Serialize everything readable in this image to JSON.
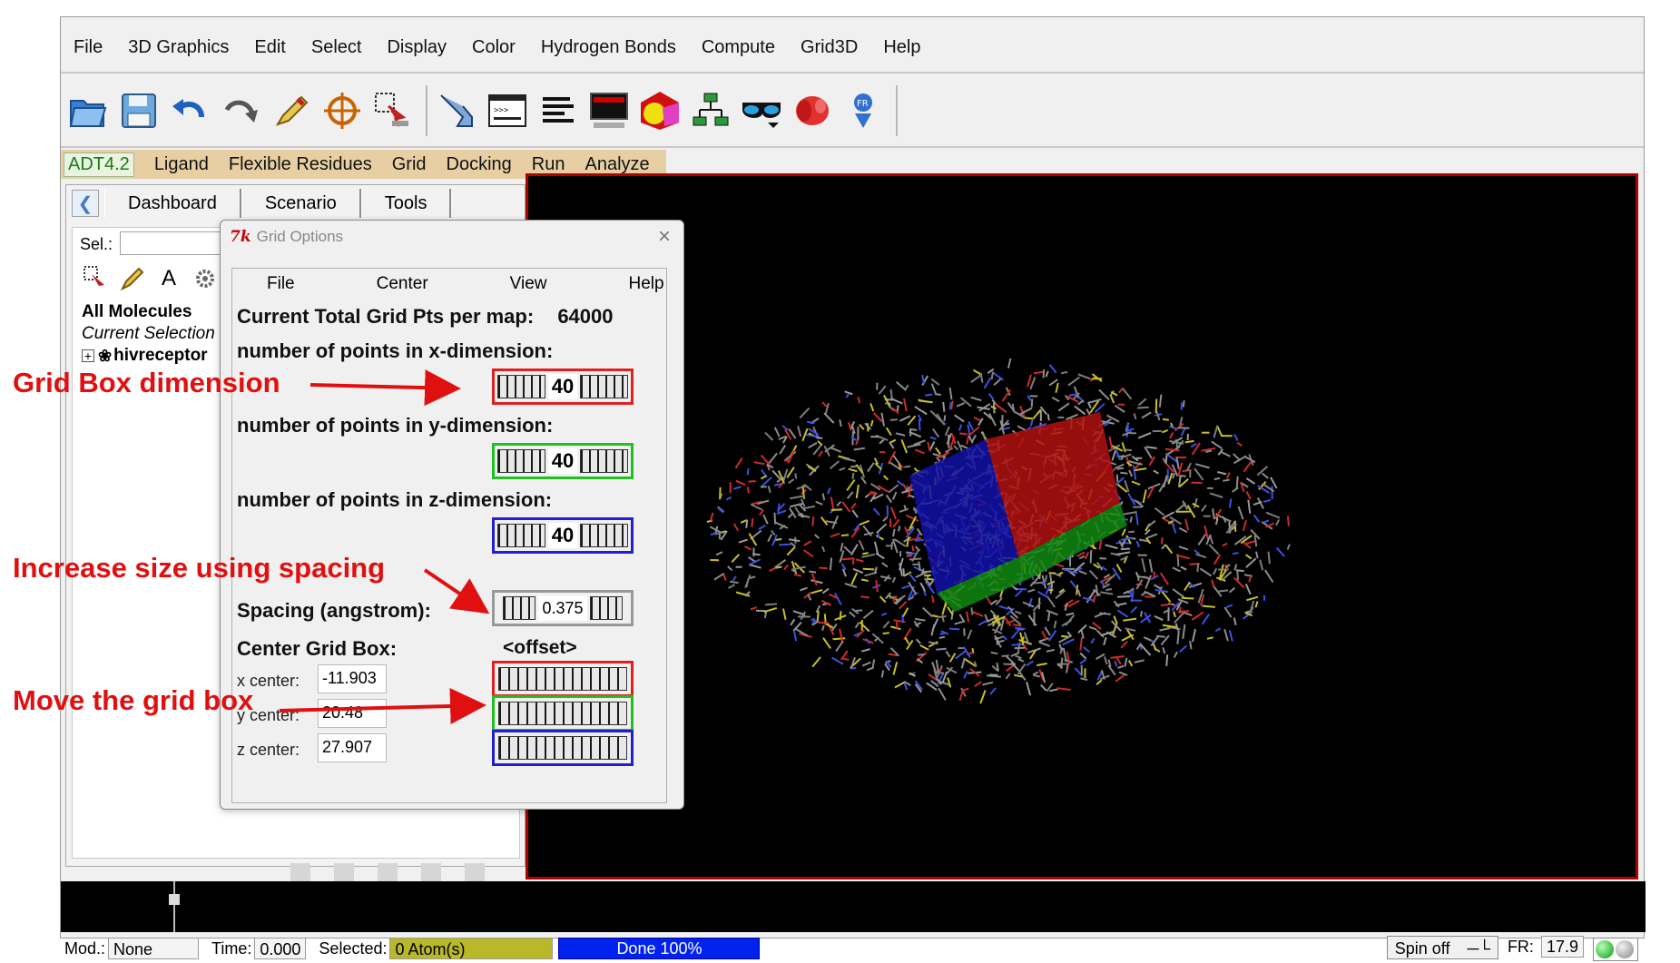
{
  "menubar": [
    "File",
    "3D Graphics",
    "Edit",
    "Select",
    "Display",
    "Color",
    "Hydrogen Bonds",
    "Compute",
    "Grid3D",
    "Help"
  ],
  "toolbar_icons": [
    "open-folder-icon",
    "save-disk-icon",
    "undo-arrow-icon",
    "redo-arrow-icon",
    "pencil-icon",
    "crosshair-target-icon",
    "selection-icon",
    "pointer-hand-icon",
    "python-shell-icon",
    "text-lines-icon",
    "monitor-icon",
    "color-shapes-icon",
    "network-icon",
    "3d-glasses-icon",
    "rendering-icon",
    "pmv-logo-icon"
  ],
  "adt_menu": {
    "version": "ADT4.2",
    "items": [
      "Ligand",
      "Flexible Residues",
      "Grid",
      "Docking",
      "Run",
      "Analyze"
    ]
  },
  "left_panel": {
    "tabs": [
      "Dashboard",
      "Scenario",
      "Tools"
    ],
    "sel_label": "Sel.:",
    "tree": {
      "all": "All Molecules",
      "current": "Current Selection",
      "molecule": "hivreceptor"
    }
  },
  "dialog": {
    "title": "Grid Options",
    "tk_logo": "7k",
    "menu": [
      "File",
      "Center",
      "View",
      "Help"
    ],
    "total_label": "Current Total Grid Pts per map:",
    "total_value": "64000",
    "x_dim_label": "number of points in x-dimension:",
    "x_dim_value": "40",
    "y_dim_label": "number of points in y-dimension:",
    "y_dim_value": "40",
    "z_dim_label": "number of points in z-dimension:",
    "z_dim_value": "40",
    "spacing_label": "Spacing (angstrom):",
    "spacing_value": "0.375",
    "center_label": "Center Grid Box:",
    "offset_label": "<offset>",
    "x_center_label": "x center:",
    "x_center_value": "-11.903",
    "y_center_label": "y center:",
    "y_center_value": "20.48",
    "z_center_label": "z center:",
    "z_center_value": "27.907"
  },
  "annotations": {
    "grid_box": "Grid Box dimension",
    "spacing": "Increase size using spacing",
    "move": "Move the grid box"
  },
  "statusbar": {
    "mod_label": "Mod.:",
    "mod_value": "None",
    "time_label": "Time:",
    "time_value": "0.000",
    "selected_label": "Selected:",
    "selected_value": "0 Atom(s)",
    "done": "Done 100%",
    "spin": "Spin off",
    "fr_label": "FR:",
    "fr_value": "17.9"
  },
  "colors": {
    "x_axis": "#e02020",
    "y_axis": "#20c020",
    "z_axis": "#2020d0",
    "annotation": "#e01010",
    "viewer_border": "#b00000"
  }
}
